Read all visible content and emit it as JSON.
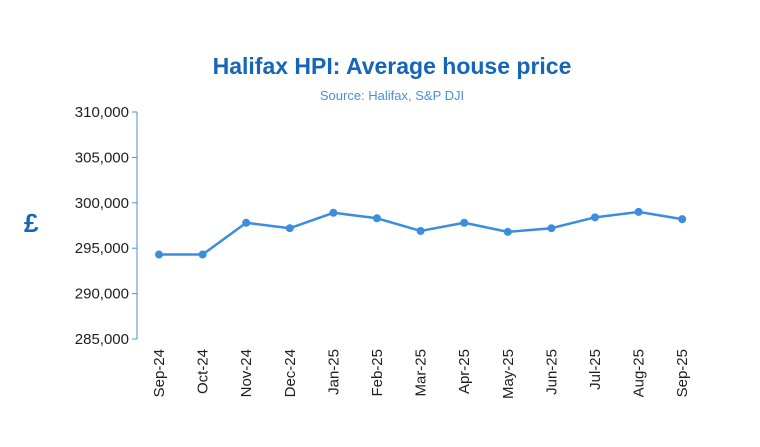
{
  "chart_data": {
    "type": "line",
    "title": "Halifax HPI: Average house price",
    "subtitle": "Source: Halifax, S&P DJI",
    "ylabel": "£",
    "xlabel": "",
    "categories": [
      "Sep-24",
      "Oct-24",
      "Nov-24",
      "Dec-24",
      "Jan-25",
      "Feb-25",
      "Mar-25",
      "Apr-25",
      "May-25",
      "Jun-25",
      "Jul-25",
      "Aug-25",
      "Sep-25"
    ],
    "series": [
      {
        "values": [
          294300,
          294300,
          297800,
          297200,
          298900,
          298300,
          296900,
          297800,
          296800,
          297200,
          298400,
          299000,
          298200
        ],
        "color": "#3b8de0"
      }
    ],
    "ylim": [
      285000,
      310000
    ],
    "yticks": [
      310000,
      305000,
      300000,
      295000,
      290000,
      285000
    ],
    "ytick_labels": [
      "310,000",
      "305,000",
      "300,000",
      "295,000",
      "290,000",
      "285,000"
    ],
    "grid": false,
    "legend": "none",
    "axis_color": "#4a90d9"
  }
}
